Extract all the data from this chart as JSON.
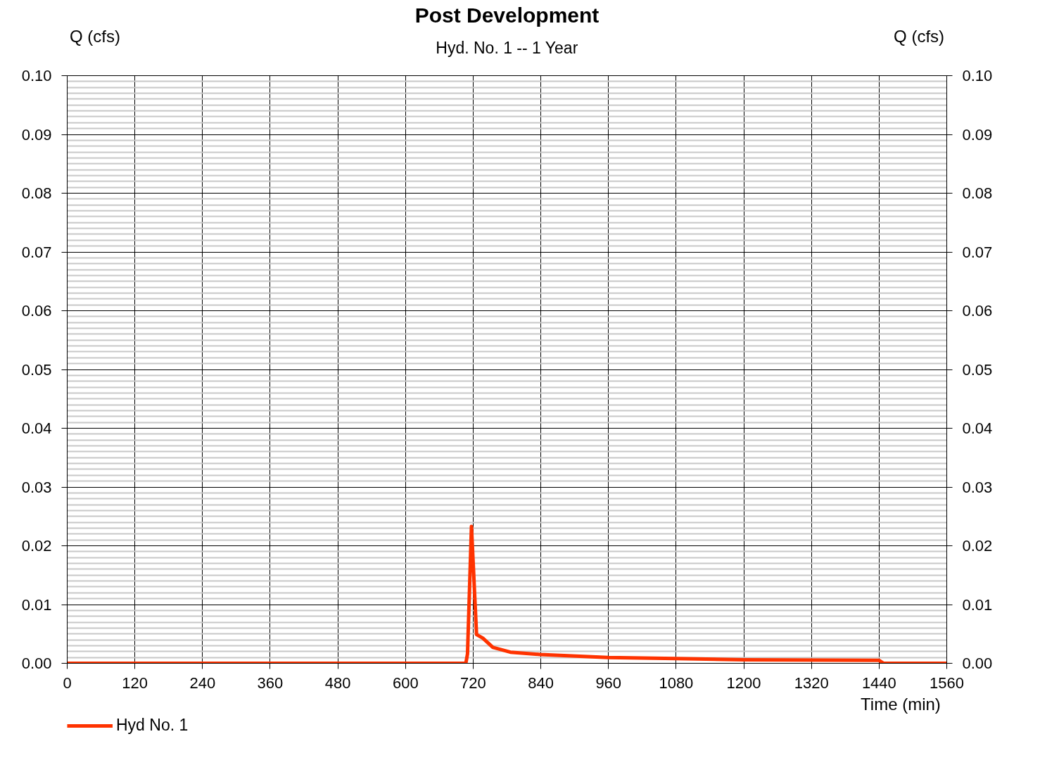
{
  "chart_data": {
    "type": "line",
    "title": "Post Development",
    "subtitle": "Hyd. No. 1 -- 1 Year",
    "xlabel": "Time (min)",
    "ylabel": "Q (cfs)",
    "y2label": "Q (cfs)",
    "xlim": [
      0,
      1560
    ],
    "xticks": [
      0,
      120,
      240,
      360,
      480,
      600,
      720,
      840,
      960,
      1080,
      1200,
      1320,
      1440,
      1560
    ],
    "ylim": [
      0,
      0.1
    ],
    "yticks": [
      {
        "value": 0,
        "label": "0.00"
      },
      {
        "value": 0.01,
        "label": "0.01"
      },
      {
        "value": 0.02,
        "label": "0.02"
      },
      {
        "value": 0.03,
        "label": "0.03"
      },
      {
        "value": 0.04,
        "label": "0.04"
      },
      {
        "value": 0.05,
        "label": "0.05"
      },
      {
        "value": 0.06,
        "label": "0.06"
      },
      {
        "value": 0.07,
        "label": "0.07"
      },
      {
        "value": 0.08,
        "label": "0.08"
      },
      {
        "value": 0.09,
        "label": "0.09"
      },
      {
        "value": 0.1,
        "label": "0.10"
      }
    ],
    "y2lim": [
      0,
      0.1
    ],
    "y2ticks": [
      {
        "value": 0,
        "label": "0.00"
      },
      {
        "value": 0.01,
        "label": "0.01"
      },
      {
        "value": 0.02,
        "label": "0.02"
      },
      {
        "value": 0.03,
        "label": "0.03"
      },
      {
        "value": 0.04,
        "label": "0.04"
      },
      {
        "value": 0.05,
        "label": "0.05"
      },
      {
        "value": 0.06,
        "label": "0.06"
      },
      {
        "value": 0.07,
        "label": "0.07"
      },
      {
        "value": 0.08,
        "label": "0.08"
      },
      {
        "value": 0.09,
        "label": "0.09"
      },
      {
        "value": 0.1,
        "label": "0.10"
      }
    ],
    "grid": true,
    "legend": "bottom left",
    "marker": "none",
    "line_style": "solid",
    "series": [
      {
        "name": "Hyd No. 1",
        "color": "#ff3300",
        "x": [
          0,
          707,
          710,
          717,
          726,
          737,
          755,
          786,
          839,
          959,
          1080,
          1200,
          1440,
          1448,
          1560
        ],
        "values": [
          0,
          0,
          0.0016,
          0.0233,
          0.0049,
          0.0043,
          0.0027,
          0.0019,
          0.0015,
          0.001,
          0.0008,
          0.0006,
          0.0005,
          0,
          0
        ]
      }
    ]
  }
}
